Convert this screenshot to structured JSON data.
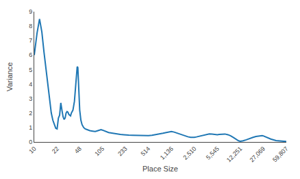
{
  "chart_data": {
    "type": "line",
    "xlabel": "Place Size",
    "ylabel": "Variance",
    "log": "x",
    "grid": false,
    "xlim": [
      10,
      59807
    ],
    "xticks": [
      10,
      22,
      48,
      105,
      233,
      514,
      {
        "value": 1136,
        "label": "1,136"
      },
      {
        "value": 2510,
        "label": "2,510"
      },
      {
        "value": 5545,
        "label": "5,545"
      },
      {
        "value": 12251,
        "label": "12,251"
      },
      {
        "value": 27069,
        "label": "27,069"
      },
      {
        "value": 59807,
        "label": "59,807"
      }
    ],
    "ylim": [
      0,
      9
    ],
    "yticks": [
      0,
      1,
      2,
      3,
      4,
      5,
      6,
      7,
      8,
      9
    ],
    "x": [
      10,
      11,
      12,
      13,
      14,
      15,
      16,
      17,
      18,
      19,
      20,
      21,
      22,
      23,
      24,
      25,
      26,
      27,
      28,
      29,
      30,
      31,
      32,
      33,
      34,
      35,
      36,
      37,
      38,
      40,
      42,
      44,
      45,
      46,
      47,
      48,
      50,
      52,
      55,
      58,
      62,
      68,
      75,
      82,
      90,
      100,
      105,
      115,
      130,
      150,
      170,
      195,
      220,
      233,
      260,
      300,
      350,
      400,
      460,
      514,
      580,
      660,
      750,
      850,
      950,
      1060,
      1136,
      1250,
      1400,
      1600,
      1800,
      2000,
      2200,
      2400,
      2510,
      2700,
      3000,
      3400,
      3800,
      4200,
      4600,
      5000,
      5300,
      5545,
      5900,
      6500,
      7200,
      8000,
      8800,
      9700,
      10700,
      11500,
      12251,
      13500,
      15000,
      17000,
      19000,
      21000,
      23500,
      26000,
      27069,
      30000,
      35000,
      42000,
      50000,
      59807
    ],
    "values": [
      6.0,
      7.5,
      8.5,
      7.6,
      6.2,
      5.0,
      3.8,
      2.7,
      2.0,
      1.5,
      1.2,
      0.95,
      0.9,
      1.65,
      1.85,
      2.7,
      2.2,
      1.75,
      1.55,
      1.65,
      2.0,
      2.1,
      2.05,
      1.9,
      1.85,
      1.8,
      2.0,
      2.1,
      2.2,
      2.8,
      4.0,
      5.2,
      5.15,
      4.0,
      3.0,
      2.2,
      1.5,
      1.2,
      1.0,
      0.9,
      0.85,
      0.78,
      0.75,
      0.72,
      0.78,
      0.85,
      0.82,
      0.75,
      0.65,
      0.6,
      0.55,
      0.52,
      0.5,
      0.48,
      0.47,
      0.46,
      0.45,
      0.44,
      0.44,
      0.44,
      0.46,
      0.5,
      0.54,
      0.6,
      0.65,
      0.7,
      0.72,
      0.68,
      0.6,
      0.5,
      0.42,
      0.36,
      0.32,
      0.3,
      0.32,
      0.35,
      0.4,
      0.46,
      0.52,
      0.56,
      0.55,
      0.52,
      0.5,
      0.5,
      0.52,
      0.55,
      0.55,
      0.5,
      0.42,
      0.3,
      0.18,
      0.08,
      0.05,
      0.08,
      0.15,
      0.25,
      0.32,
      0.38,
      0.42,
      0.44,
      0.42,
      0.32,
      0.2,
      0.1,
      0.05,
      0.03
    ]
  }
}
